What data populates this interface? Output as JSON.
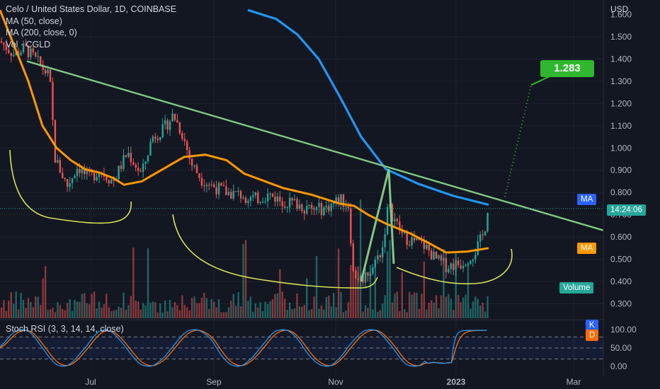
{
  "header": {
    "title": "Celo / United States Dollar, 1D, COINBASE",
    "indicators": [
      "MA (50, close)",
      "MA (200, close, 0)",
      "Vol · CGLD"
    ]
  },
  "price_axis": {
    "unit": "USD",
    "ticks": [
      "1.500",
      "1.400",
      "1.300",
      "1.200",
      "1.100",
      "1.000",
      "0.900",
      "0.800",
      "0.700",
      "0.600",
      "0.500",
      "0.400",
      "0.300"
    ],
    "top_label_partial": "1.600"
  },
  "stoch_axis": {
    "ticks": [
      "100.00",
      "50.00",
      "0.00"
    ]
  },
  "stoch_legend": "Stoch RSI (3, 3, 14, 14, close)",
  "time_axis": {
    "ticks": [
      "Jul",
      "Sep",
      "Nov",
      "2023",
      "Mar"
    ]
  },
  "tags": {
    "ma200": "MA",
    "ma50": "MA",
    "countdown": "14:24:06",
    "volume": "Volume",
    "k": "K",
    "d": "D"
  },
  "target_label": "1.283",
  "colors": {
    "background": "#131722",
    "up": "#26a69a",
    "down": "#ef5350",
    "ma50": "#ff9800",
    "ma200": "#2196f3",
    "trendline": "#81c784",
    "pattern": "#d4e157",
    "target": "#2fb82f",
    "stoch_k": "#2196f3",
    "stoch_d": "#ff6d00"
  },
  "chart_data": {
    "type": "candlestick",
    "title": "Celo / United States Dollar, 1D, COINBASE",
    "ylabel": "USD",
    "ylim": [
      0.25,
      1.62
    ],
    "x_ticks": [
      "Jul",
      "Sep",
      "Nov",
      "2023",
      "Mar"
    ],
    "series": [
      {
        "name": "MA (50, close)",
        "points": [
          [
            0,
            1.62
          ],
          [
            40,
            1.3
          ],
          [
            60,
            1.1
          ],
          [
            80,
            1.0
          ],
          [
            100,
            0.945
          ],
          [
            120,
            0.905
          ],
          [
            140,
            0.89
          ],
          [
            160,
            0.865
          ],
          [
            175,
            0.835
          ],
          [
            200,
            0.85
          ],
          [
            230,
            0.905
          ],
          [
            260,
            0.96
          ],
          [
            290,
            0.97
          ],
          [
            320,
            0.945
          ],
          [
            345,
            0.885
          ],
          [
            400,
            0.82
          ],
          [
            440,
            0.79
          ],
          [
            480,
            0.75
          ],
          [
            500,
            0.74
          ],
          [
            520,
            0.7
          ],
          [
            545,
            0.66
          ],
          [
            580,
            0.615
          ],
          [
            610,
            0.565
          ],
          [
            630,
            0.53
          ],
          [
            660,
            0.535
          ],
          [
            690,
            0.55
          ]
        ]
      },
      {
        "name": "MA (200, close, 0)",
        "points": [
          [
            350,
            1.62
          ],
          [
            390,
            1.58
          ],
          [
            420,
            1.51
          ],
          [
            450,
            1.4
          ],
          [
            480,
            1.23
          ],
          [
            510,
            1.05
          ],
          [
            545,
            0.905
          ],
          [
            590,
            0.84
          ],
          [
            640,
            0.785
          ],
          [
            690,
            0.745
          ]
        ]
      },
      {
        "name": "Vol · CGLD"
      }
    ],
    "trendline": {
      "from": [
        38,
        1.39
      ],
      "to": [
        852,
        0.63
      ]
    },
    "measured_move": {
      "points": [
        [
          510,
          0.4
        ],
        [
          549,
          0.905
        ],
        [
          556,
          0.48
        ]
      ]
    },
    "projection": {
      "from": [
        713,
        0.78
      ],
      "to": [
        750,
        1.283
      ],
      "target": 1.283
    },
    "last_price": 0.728,
    "stoch_rsi": {
      "name": "Stoch RSI (3, 3, 14, 14, close)",
      "levels": [
        80,
        50,
        20
      ],
      "ylim": [
        0,
        100
      ]
    }
  }
}
